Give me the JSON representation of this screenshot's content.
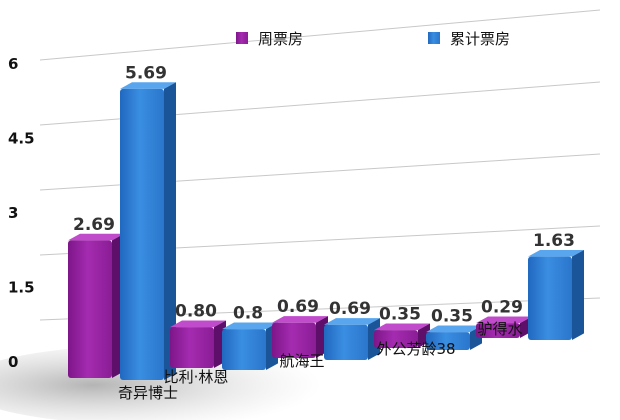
{
  "chart_data": {
    "type": "bar",
    "categories": [
      "奇异博士",
      "比利·林恩",
      "航海王",
      "外公芳龄38",
      "驴得水"
    ],
    "series": [
      {
        "name": "周票房",
        "values": [
          2.69,
          0.8,
          0.69,
          0.35,
          0.29
        ],
        "labels": [
          "2.69",
          "0.80",
          "0.69",
          "0.35",
          "0.29"
        ],
        "color": "#9b1fa6"
      },
      {
        "name": "累计票房",
        "values": [
          5.69,
          0.8,
          0.69,
          0.35,
          1.63
        ],
        "labels": [
          "5.69",
          "0.8",
          "0.69",
          "0.35",
          "1.63"
        ],
        "color": "#2f7fd6"
      }
    ],
    "yticks": [
      "0",
      "1.5",
      "3",
      "4.5",
      "6"
    ],
    "ylim": [
      0,
      6
    ],
    "grid": true,
    "legend": "top",
    "title": "",
    "xlabel": "",
    "ylabel": ""
  }
}
